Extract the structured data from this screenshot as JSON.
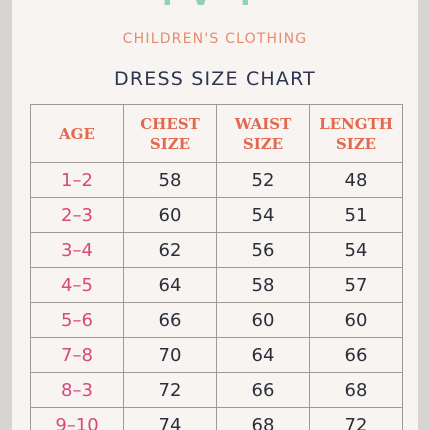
{
  "header": {
    "brand": "IVY",
    "tagline": "CHILDREN'S CLOTHING",
    "title": "DRESS SIZE CHART"
  },
  "table": {
    "columns": [
      "AGE",
      "CHEST SIZE",
      "WAIST SIZE",
      "LENGTH SIZE"
    ],
    "rows": [
      [
        "1–2",
        "58",
        "52",
        "48"
      ],
      [
        "2–3",
        "60",
        "54",
        "51"
      ],
      [
        "3–4",
        "62",
        "56",
        "54"
      ],
      [
        "4–5",
        "64",
        "58",
        "57"
      ],
      [
        "5–6",
        "66",
        "60",
        "60"
      ],
      [
        "7–8",
        "70",
        "64",
        "66"
      ],
      [
        "8–3",
        "72",
        "66",
        "68"
      ],
      [
        "9–10",
        "74",
        "68",
        "72"
      ]
    ]
  }
}
